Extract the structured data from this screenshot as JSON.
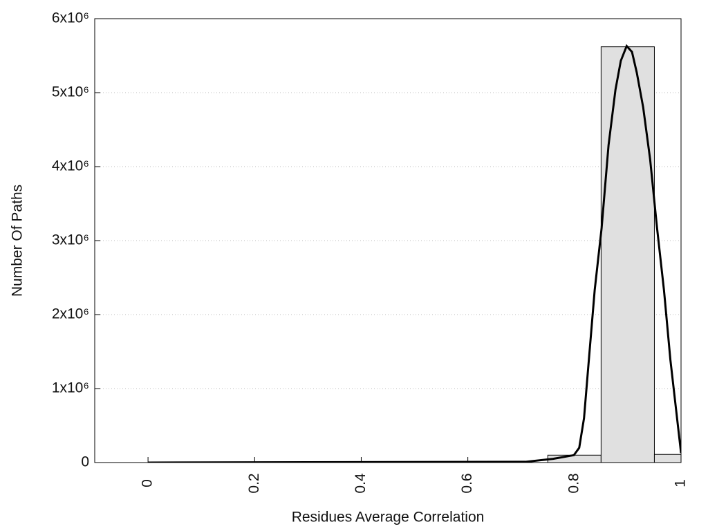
{
  "chart_data": {
    "type": "histogram",
    "xlabel": "Residues Average Correlation",
    "ylabel": "Number Of Paths",
    "bins": [
      -0.05,
      0.05,
      0.15,
      0.25,
      0.35,
      0.45,
      0.55,
      0.65,
      0.75,
      0.85,
      0.95,
      1.05
    ],
    "counts": [
      0,
      0,
      0,
      0,
      0,
      0,
      0,
      0,
      100000,
      5620000,
      110000
    ],
    "color": "#e0e0e0",
    "curve": {
      "x": [
        0,
        0.708,
        0.76,
        0.799,
        0.809,
        0.818,
        0.825,
        0.838,
        0.851,
        0.864,
        0.877,
        0.887,
        0.898,
        0.908,
        0.917,
        0.929,
        0.942,
        0.955,
        0.968,
        0.98,
        1.0
      ],
      "values": [
        0,
        10000,
        50000,
        100000,
        200000,
        600000,
        1210000,
        2330000,
        3170000,
        4290000,
        5040000,
        5430000,
        5630000,
        5550000,
        5270000,
        4800000,
        4100000,
        3170000,
        2330000,
        1390000,
        130000
      ],
      "color": "#000000"
    },
    "xlim": [
      -0.1,
      1
    ],
    "ylim": [
      0,
      6000000
    ],
    "xticks": [
      0,
      0.2,
      0.4,
      0.6,
      0.8,
      1
    ],
    "yticks": [
      0,
      {
        "value": 1000000,
        "label": "1x10⁶"
      },
      {
        "value": 2000000,
        "label": "2x10⁶"
      },
      {
        "value": 3000000,
        "label": "3x10⁶"
      },
      {
        "value": 4000000,
        "label": "4x10⁶"
      },
      {
        "value": 5000000,
        "label": "5x10⁶"
      },
      {
        "value": 6000000,
        "label": "6x10⁶"
      }
    ],
    "grid": true
  }
}
